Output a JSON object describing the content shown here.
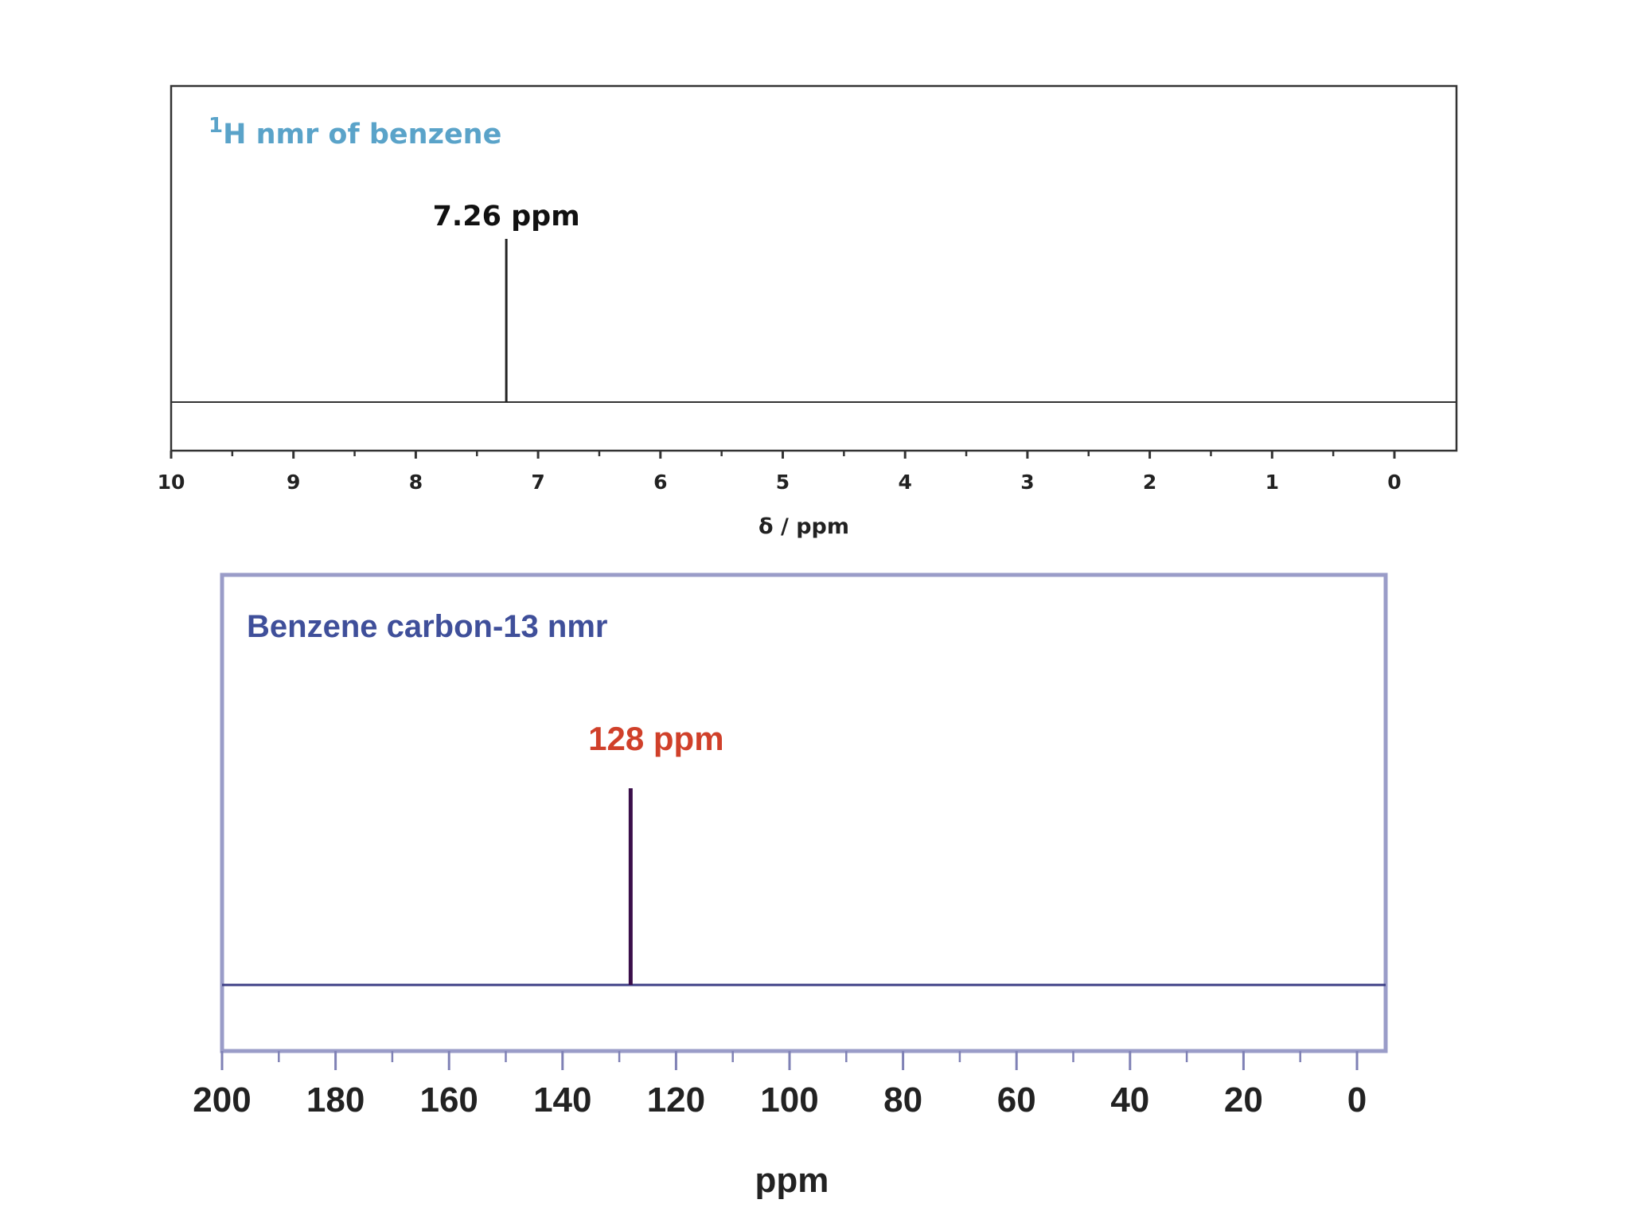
{
  "chart_data": [
    {
      "type": "line",
      "title_sup": "1",
      "title": "H nmr of benzene",
      "xlabel": "δ / ppm",
      "ylabel": "",
      "x_reversed": true,
      "xlim": [
        10,
        0
      ],
      "ticks": [
        10,
        9,
        8,
        7,
        6,
        5,
        4,
        3,
        2,
        1,
        0
      ],
      "peaks": [
        {
          "x": 7.26,
          "height": 1.0
        }
      ],
      "annotation": "7.26 ppm",
      "colors": {
        "title": "#5aa3c9",
        "frame": "#333333",
        "trace": "#222222",
        "annotation": "#111111"
      }
    },
    {
      "type": "line",
      "title": "Benzene carbon-13 nmr",
      "xlabel": "ppm",
      "ylabel": "",
      "x_reversed": true,
      "xlim": [
        200,
        0
      ],
      "ticks": [
        200,
        180,
        160,
        140,
        120,
        100,
        80,
        60,
        40,
        20,
        0
      ],
      "peaks": [
        {
          "x": 128,
          "height": 1.0
        }
      ],
      "annotation": "128 ppm",
      "colors": {
        "title": "#3f4f9a",
        "frame": "#9a9cc8",
        "trace": "#3d3f86",
        "peak": "#3a0f4a",
        "annotation": "#d0402a"
      }
    }
  ]
}
